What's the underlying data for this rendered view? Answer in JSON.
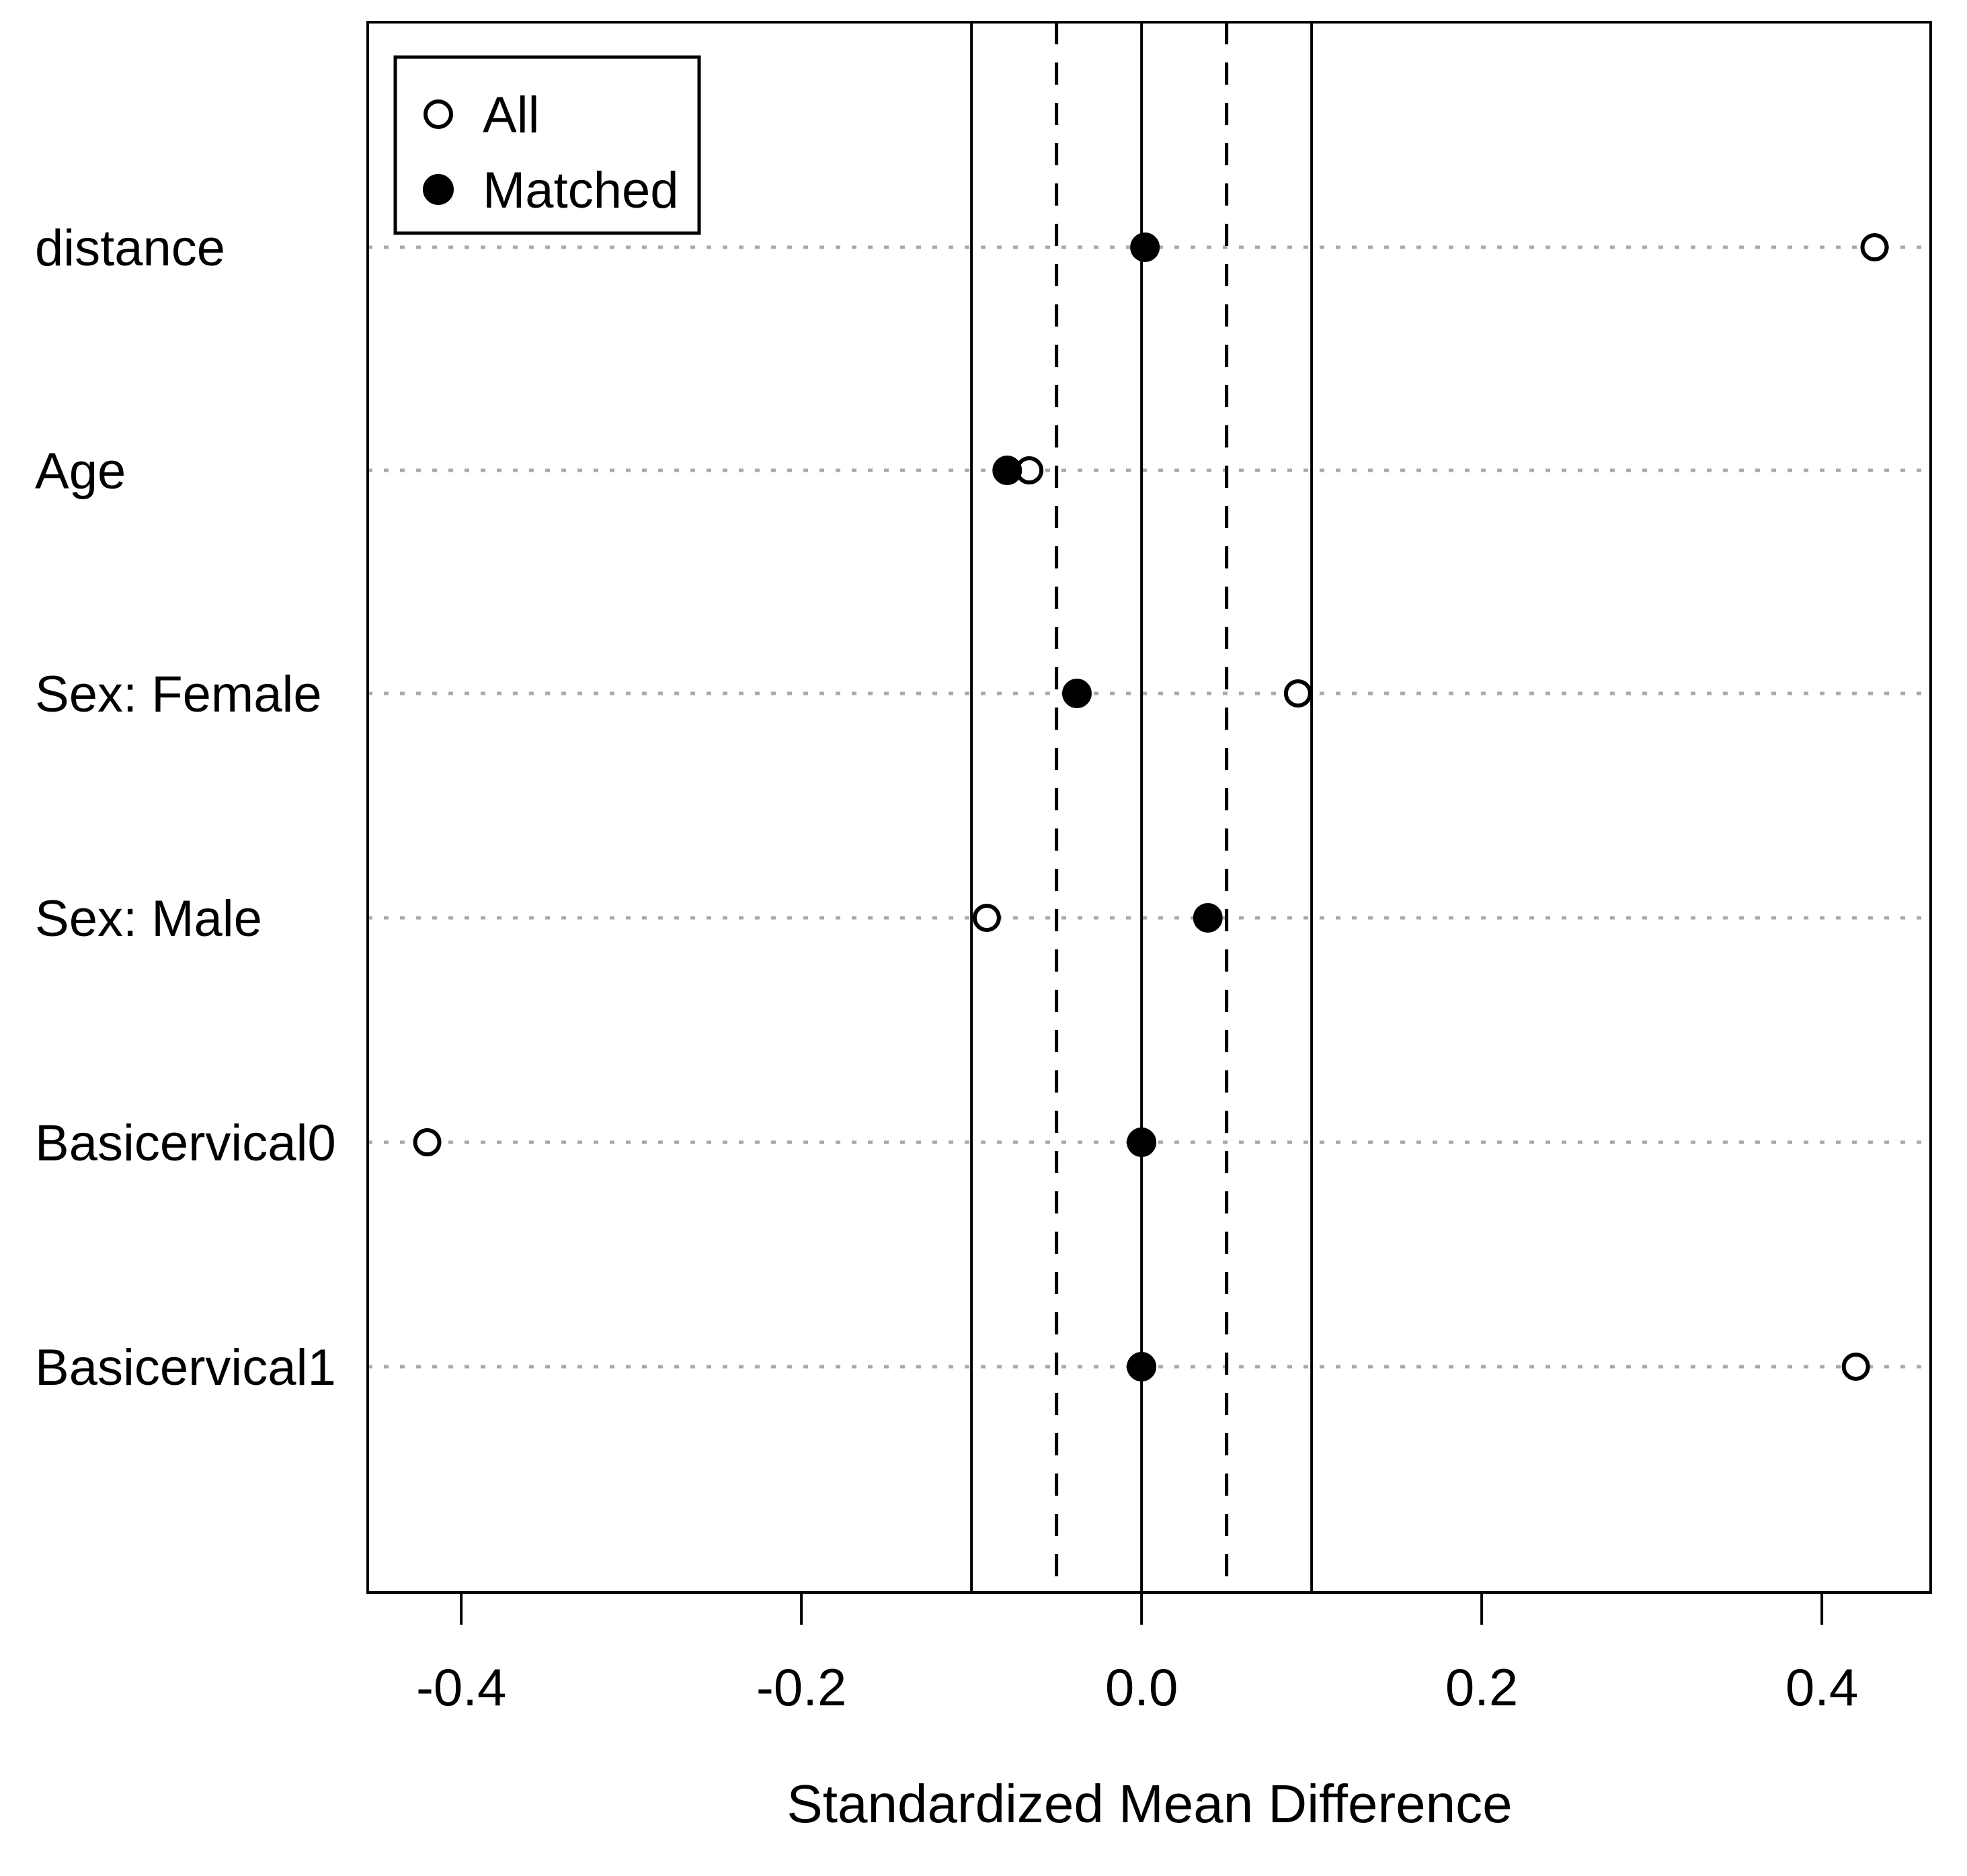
{
  "figure": {
    "kind": "love-plot (standardized mean difference balance plot)",
    "background": "#ffffff",
    "foreground": "#000000"
  },
  "legend": {
    "position": "top-left",
    "items": [
      {
        "label": "All",
        "marker": "open-circle-icon"
      },
      {
        "label": "Matched",
        "marker": "filled-circle-icon"
      }
    ]
  },
  "chart_data": {
    "type": "scatter",
    "subtype": "horizontal-dot-plot",
    "title": "",
    "xlabel": "Standardized Mean Difference",
    "ylabel": "",
    "categories": [
      "distance",
      "Age",
      "Sex: Female",
      "Sex: Male",
      "Basicervical0",
      "Basicervical1"
    ],
    "series": [
      {
        "name": "All",
        "marker": "open-circle",
        "values": [
          0.431,
          -0.066,
          0.092,
          -0.091,
          -0.42,
          0.42
        ]
      },
      {
        "name": "Matched",
        "marker": "filled-circle",
        "values": [
          0.002,
          -0.079,
          -0.038,
          0.039,
          0.0,
          0.0
        ]
      }
    ],
    "xlim": [
      -0.455,
      0.464
    ],
    "x_ticks": [
      -0.4,
      -0.2,
      0.0,
      0.2,
      0.4
    ],
    "x_tick_labels": [
      "-0.4",
      "-0.2",
      "0.0",
      "0.2",
      "0.4"
    ],
    "reference_lines": {
      "solid": [
        -0.1,
        0.0,
        0.1
      ],
      "dashed": [
        -0.05,
        0.05
      ]
    },
    "grid": "dotted-horizontal-per-row",
    "legend_position": "top-left-inside",
    "colors": {
      "points": "#000000",
      "grid_dots": "#a9a9a9",
      "box": "#000000"
    }
  }
}
